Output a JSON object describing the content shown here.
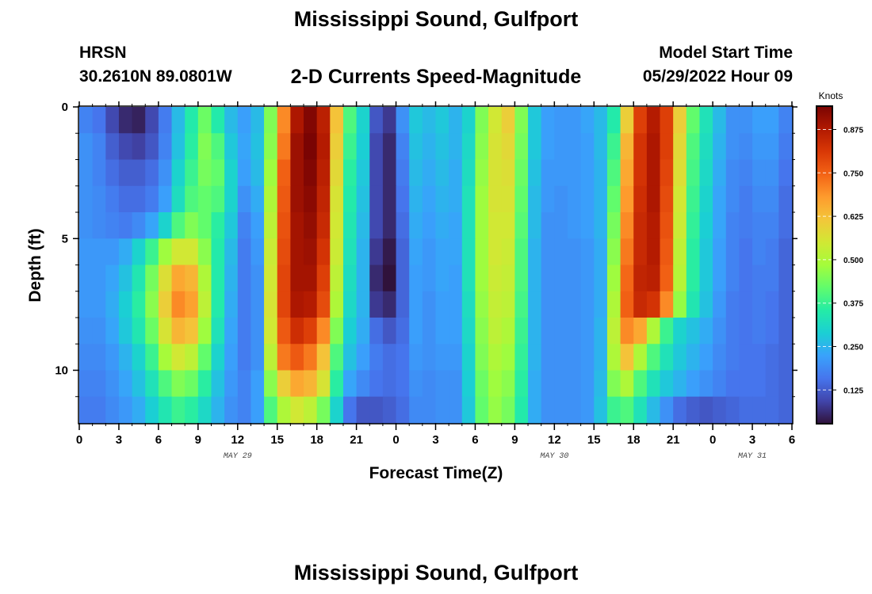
{
  "header": {
    "title": "Mississippi Sound, Gulfport",
    "station": "HRSN",
    "coordinates": "30.2610N  89.0801W",
    "subtitle": "2-D Currents Speed-Magnitude",
    "model_start_label": "Model Start Time",
    "model_start_time": "05/29/2022 Hour 09"
  },
  "footer": {
    "title_repeat": "Mississippi Sound, Gulfport"
  },
  "chart_data": {
    "type": "heatmap",
    "title": "2-D Currents Speed-Magnitude",
    "xlabel": "Forecast Time(Z)",
    "ylabel": "Depth (ft)",
    "x_tick_labels": [
      "0",
      "3",
      "6",
      "9",
      "12",
      "15",
      "18",
      "21",
      "0",
      "3",
      "6",
      "9",
      "12",
      "15",
      "18",
      "21",
      "0",
      "3",
      "6"
    ],
    "x_range_hours": [
      0,
      54
    ],
    "date_labels": [
      {
        "text": "MAY 29",
        "hour": 12
      },
      {
        "text": "MAY 30",
        "hour": 36
      },
      {
        "text": "MAY 31",
        "hour": 51
      }
    ],
    "y_tick_labels": [
      "0",
      "5",
      "10"
    ],
    "y_tick_values": [
      0,
      5,
      10
    ],
    "ylim": [
      0,
      12
    ],
    "depth_layers": 12,
    "colorbar": {
      "label": "Knots",
      "range": [
        0.03,
        0.94
      ],
      "ticks": [
        "0.125",
        "0.250",
        "0.375",
        "0.500",
        "0.625",
        "0.750",
        "0.875"
      ],
      "tick_values": [
        0.125,
        0.25,
        0.375,
        0.5,
        0.625,
        0.75,
        0.875
      ]
    },
    "colormap": [
      "#30123b",
      "#4145ab",
      "#4675ed",
      "#39a2fc",
      "#1bcfd4",
      "#24eca6",
      "#61fc6c",
      "#a4fc3b",
      "#d1e834",
      "#f3c63a",
      "#fe9b2d",
      "#f36315",
      "#d93806",
      "#b11901",
      "#7a0403"
    ],
    "speed_values_knots": [
      [
        0.18,
        0.16,
        0.1,
        0.06,
        0.05,
        0.1,
        0.17,
        0.26,
        0.35,
        0.43,
        0.35,
        0.26,
        0.22,
        0.26,
        0.45,
        0.7,
        0.88,
        0.93,
        0.86,
        0.62,
        0.4,
        0.3,
        0.12,
        0.08,
        0.2,
        0.28,
        0.26,
        0.28,
        0.25,
        0.3,
        0.45,
        0.55,
        0.6,
        0.45,
        0.28,
        0.22,
        0.21,
        0.21,
        0.23,
        0.26,
        0.35,
        0.6,
        0.8,
        0.87,
        0.8,
        0.6,
        0.42,
        0.33,
        0.26,
        0.2,
        0.2,
        0.22,
        0.22,
        0.18
      ],
      [
        0.2,
        0.18,
        0.13,
        0.1,
        0.09,
        0.12,
        0.18,
        0.27,
        0.36,
        0.45,
        0.4,
        0.28,
        0.23,
        0.27,
        0.46,
        0.72,
        0.9,
        0.94,
        0.87,
        0.6,
        0.38,
        0.29,
        0.1,
        0.06,
        0.18,
        0.27,
        0.25,
        0.27,
        0.25,
        0.31,
        0.46,
        0.56,
        0.58,
        0.44,
        0.28,
        0.22,
        0.21,
        0.21,
        0.22,
        0.26,
        0.38,
        0.64,
        0.82,
        0.88,
        0.8,
        0.58,
        0.4,
        0.32,
        0.25,
        0.2,
        0.19,
        0.21,
        0.21,
        0.17
      ],
      [
        0.2,
        0.18,
        0.15,
        0.13,
        0.13,
        0.15,
        0.2,
        0.3,
        0.38,
        0.44,
        0.42,
        0.3,
        0.22,
        0.26,
        0.48,
        0.75,
        0.9,
        0.93,
        0.86,
        0.58,
        0.36,
        0.28,
        0.1,
        0.06,
        0.17,
        0.26,
        0.24,
        0.26,
        0.24,
        0.32,
        0.47,
        0.56,
        0.57,
        0.43,
        0.27,
        0.21,
        0.21,
        0.21,
        0.22,
        0.25,
        0.4,
        0.66,
        0.82,
        0.88,
        0.79,
        0.57,
        0.39,
        0.31,
        0.24,
        0.19,
        0.18,
        0.2,
        0.2,
        0.16
      ],
      [
        0.2,
        0.19,
        0.17,
        0.15,
        0.15,
        0.17,
        0.22,
        0.32,
        0.4,
        0.42,
        0.4,
        0.3,
        0.2,
        0.24,
        0.5,
        0.76,
        0.9,
        0.92,
        0.85,
        0.56,
        0.35,
        0.27,
        0.1,
        0.06,
        0.16,
        0.25,
        0.23,
        0.25,
        0.24,
        0.33,
        0.48,
        0.56,
        0.56,
        0.42,
        0.26,
        0.21,
        0.2,
        0.21,
        0.22,
        0.25,
        0.42,
        0.68,
        0.83,
        0.88,
        0.78,
        0.55,
        0.38,
        0.3,
        0.23,
        0.19,
        0.17,
        0.19,
        0.19,
        0.15
      ],
      [
        0.2,
        0.19,
        0.18,
        0.17,
        0.19,
        0.23,
        0.3,
        0.4,
        0.45,
        0.42,
        0.36,
        0.28,
        0.18,
        0.22,
        0.52,
        0.77,
        0.89,
        0.91,
        0.84,
        0.55,
        0.34,
        0.26,
        0.1,
        0.06,
        0.15,
        0.24,
        0.22,
        0.24,
        0.23,
        0.33,
        0.48,
        0.55,
        0.55,
        0.41,
        0.26,
        0.2,
        0.2,
        0.21,
        0.22,
        0.25,
        0.44,
        0.7,
        0.84,
        0.87,
        0.77,
        0.54,
        0.37,
        0.29,
        0.23,
        0.18,
        0.17,
        0.18,
        0.18,
        0.15
      ],
      [
        0.21,
        0.21,
        0.21,
        0.24,
        0.3,
        0.38,
        0.48,
        0.55,
        0.55,
        0.46,
        0.35,
        0.26,
        0.17,
        0.21,
        0.54,
        0.78,
        0.89,
        0.9,
        0.82,
        0.54,
        0.33,
        0.25,
        0.08,
        0.04,
        0.14,
        0.23,
        0.21,
        0.23,
        0.23,
        0.33,
        0.48,
        0.55,
        0.54,
        0.4,
        0.25,
        0.2,
        0.2,
        0.2,
        0.21,
        0.24,
        0.46,
        0.72,
        0.84,
        0.87,
        0.76,
        0.52,
        0.36,
        0.28,
        0.22,
        0.18,
        0.16,
        0.18,
        0.17,
        0.14
      ],
      [
        0.21,
        0.21,
        0.23,
        0.27,
        0.34,
        0.44,
        0.57,
        0.66,
        0.64,
        0.5,
        0.35,
        0.25,
        0.17,
        0.2,
        0.55,
        0.79,
        0.89,
        0.89,
        0.8,
        0.52,
        0.32,
        0.25,
        0.06,
        0.03,
        0.14,
        0.22,
        0.21,
        0.23,
        0.22,
        0.33,
        0.48,
        0.54,
        0.53,
        0.4,
        0.25,
        0.2,
        0.2,
        0.2,
        0.21,
        0.24,
        0.48,
        0.74,
        0.85,
        0.86,
        0.75,
        0.51,
        0.36,
        0.28,
        0.22,
        0.18,
        0.16,
        0.17,
        0.17,
        0.14
      ],
      [
        0.21,
        0.21,
        0.24,
        0.29,
        0.36,
        0.46,
        0.6,
        0.7,
        0.67,
        0.52,
        0.35,
        0.24,
        0.17,
        0.2,
        0.56,
        0.79,
        0.88,
        0.87,
        0.78,
        0.5,
        0.31,
        0.25,
        0.08,
        0.06,
        0.14,
        0.22,
        0.2,
        0.22,
        0.22,
        0.32,
        0.47,
        0.53,
        0.52,
        0.39,
        0.25,
        0.2,
        0.2,
        0.2,
        0.21,
        0.24,
        0.5,
        0.75,
        0.84,
        0.82,
        0.7,
        0.47,
        0.34,
        0.27,
        0.21,
        0.17,
        0.16,
        0.17,
        0.16,
        0.14
      ],
      [
        0.2,
        0.2,
        0.23,
        0.28,
        0.34,
        0.43,
        0.56,
        0.64,
        0.62,
        0.48,
        0.33,
        0.23,
        0.17,
        0.2,
        0.55,
        0.76,
        0.83,
        0.8,
        0.7,
        0.45,
        0.29,
        0.24,
        0.15,
        0.12,
        0.15,
        0.22,
        0.2,
        0.22,
        0.22,
        0.31,
        0.46,
        0.52,
        0.5,
        0.38,
        0.25,
        0.2,
        0.2,
        0.2,
        0.21,
        0.25,
        0.52,
        0.7,
        0.66,
        0.5,
        0.38,
        0.3,
        0.27,
        0.24,
        0.2,
        0.17,
        0.16,
        0.17,
        0.16,
        0.14
      ],
      [
        0.19,
        0.19,
        0.21,
        0.25,
        0.3,
        0.38,
        0.49,
        0.55,
        0.52,
        0.42,
        0.3,
        0.22,
        0.17,
        0.2,
        0.52,
        0.72,
        0.76,
        0.72,
        0.62,
        0.4,
        0.27,
        0.22,
        0.17,
        0.15,
        0.16,
        0.21,
        0.2,
        0.21,
        0.21,
        0.3,
        0.45,
        0.5,
        0.48,
        0.37,
        0.25,
        0.2,
        0.2,
        0.2,
        0.21,
        0.25,
        0.5,
        0.62,
        0.5,
        0.4,
        0.33,
        0.28,
        0.25,
        0.22,
        0.19,
        0.17,
        0.16,
        0.16,
        0.15,
        0.14
      ],
      [
        0.18,
        0.18,
        0.2,
        0.23,
        0.27,
        0.33,
        0.4,
        0.45,
        0.43,
        0.36,
        0.27,
        0.21,
        0.18,
        0.22,
        0.46,
        0.6,
        0.66,
        0.64,
        0.56,
        0.36,
        0.23,
        0.19,
        0.16,
        0.15,
        0.16,
        0.2,
        0.19,
        0.2,
        0.2,
        0.29,
        0.43,
        0.48,
        0.46,
        0.36,
        0.24,
        0.2,
        0.2,
        0.2,
        0.21,
        0.26,
        0.45,
        0.5,
        0.4,
        0.33,
        0.28,
        0.25,
        0.22,
        0.2,
        0.18,
        0.16,
        0.16,
        0.16,
        0.15,
        0.14
      ],
      [
        0.17,
        0.17,
        0.19,
        0.21,
        0.24,
        0.29,
        0.34,
        0.38,
        0.36,
        0.31,
        0.25,
        0.2,
        0.18,
        0.22,
        0.4,
        0.5,
        0.55,
        0.52,
        0.44,
        0.3,
        0.16,
        0.12,
        0.12,
        0.13,
        0.15,
        0.19,
        0.19,
        0.2,
        0.2,
        0.28,
        0.42,
        0.47,
        0.44,
        0.35,
        0.24,
        0.2,
        0.2,
        0.2,
        0.21,
        0.27,
        0.38,
        0.4,
        0.33,
        0.26,
        0.2,
        0.15,
        0.13,
        0.12,
        0.13,
        0.14,
        0.15,
        0.15,
        0.15,
        0.14
      ]
    ]
  }
}
